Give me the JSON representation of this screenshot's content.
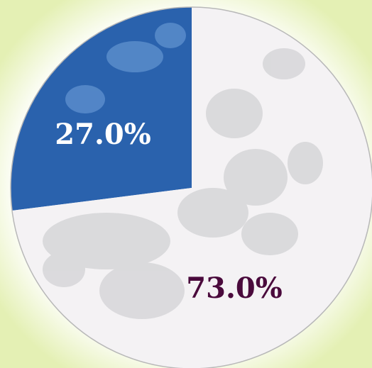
{
  "chart_data": {
    "type": "pie",
    "values": [
      27,
      73
    ],
    "value_labels": [
      "27.0%",
      "73.0%"
    ],
    "colors": [
      "#2a62ad",
      "#f4f2f4"
    ],
    "label_colors": [
      "#ffffff",
      "#4a0a3c"
    ]
  }
}
